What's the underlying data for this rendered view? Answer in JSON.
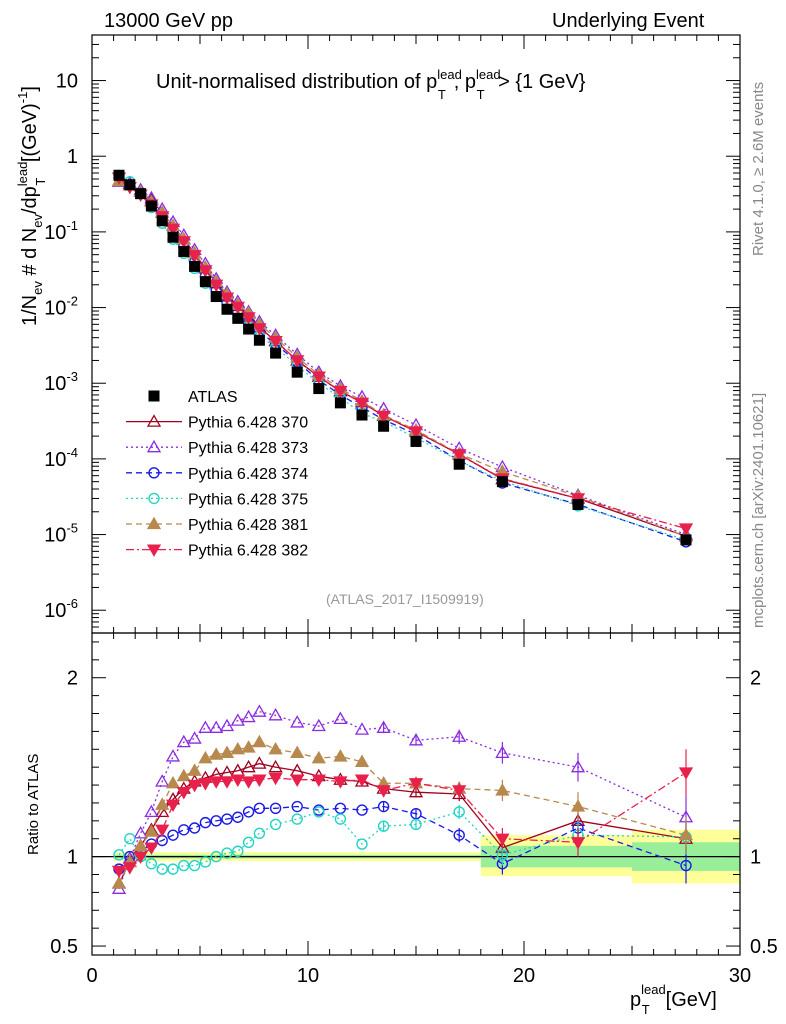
{
  "header": {
    "left": "13000 GeV pp",
    "right": "Underlying Event"
  },
  "side_labels": {
    "rivet": "Rivet 4.1.0, ≥ 2.6M events",
    "mcplots": "mcplots.cern.ch [arXiv:2401.10621]"
  },
  "chart_data": [
    {
      "type": "scatter",
      "panel": "main",
      "title": "Unit-normalised distribution of pT^lead, pT^lead > {1 GeV}",
      "title_main": "Unit-normalised distribution of p",
      "title_mid": ", p",
      "title_end": " > {1 GeV}",
      "sup": "lead",
      "sub": "T",
      "ylabel": "1/Nev # d Nev/dpT^lead [(GeV)^-1]",
      "ylabel_parts": {
        "a": "1/N",
        "ev": "ev",
        "b": "# d N",
        "c": "/dp",
        "unit": "[(GeV)",
        "neg1": "-1",
        "close": "]"
      },
      "yscale": "log",
      "ylim": [
        5e-07,
        40
      ],
      "xlim": [
        0,
        30
      ],
      "ytick_labels": [
        {
          "b": "10",
          "e": "-6"
        },
        {
          "b": "10",
          "e": "-5"
        },
        {
          "b": "10",
          "e": "-4"
        },
        {
          "b": "10",
          "e": "-3"
        },
        {
          "b": "10",
          "e": "-2"
        },
        {
          "b": "10",
          "e": "-1"
        },
        {
          "b": "1",
          "e": ""
        },
        {
          "b": "10",
          "e": ""
        }
      ],
      "watermark": "(ATLAS_2017_I1509919)",
      "legend_position": "middle-left",
      "x": [
        1.25,
        1.75,
        2.25,
        2.75,
        3.25,
        3.75,
        4.25,
        4.75,
        5.25,
        5.75,
        6.25,
        6.75,
        7.25,
        7.75,
        8.5,
        9.5,
        10.5,
        11.5,
        12.5,
        13.5,
        15,
        17,
        19,
        22.5,
        27.5
      ],
      "series": [
        {
          "name": "ATLAS",
          "style": "data",
          "values": [
            0.56,
            0.42,
            0.32,
            0.22,
            0.14,
            0.085,
            0.055,
            0.035,
            0.022,
            0.014,
            0.0095,
            0.0072,
            0.0052,
            0.0037,
            0.0025,
            0.0014,
            0.00085,
            0.00055,
            0.00038,
            0.00027,
            0.00017,
            8.5e-05,
            5e-05,
            2.5e-05,
            8.5e-06
          ]
        },
        {
          "name": "Pythia 6.428 370",
          "style": "s370",
          "values": [
            0.47,
            0.43,
            0.34,
            0.26,
            0.18,
            0.12,
            0.08,
            0.052,
            0.033,
            0.021,
            0.014,
            0.0105,
            0.0076,
            0.0055,
            0.0036,
            0.002,
            0.00122,
            0.00078,
            0.00056,
            0.00037,
            0.00023,
            0.000115,
            5.4e-05,
            3e-05,
            9.5e-06
          ]
        },
        {
          "name": "Pythia 6.428 373",
          "style": "s373",
          "values": [
            0.46,
            0.44,
            0.36,
            0.28,
            0.2,
            0.135,
            0.09,
            0.058,
            0.038,
            0.024,
            0.016,
            0.012,
            0.0088,
            0.0065,
            0.0043,
            0.0024,
            0.0014,
            0.00092,
            0.00066,
            0.00046,
            0.00028,
            0.000138,
            7.8e-05,
            3.3e-05,
            1e-05
          ]
        },
        {
          "name": "Pythia 6.428 374",
          "style": "s374",
          "values": [
            0.52,
            0.42,
            0.33,
            0.24,
            0.16,
            0.1,
            0.064,
            0.04,
            0.026,
            0.017,
            0.0115,
            0.0088,
            0.0065,
            0.0048,
            0.0033,
            0.0019,
            0.0011,
            0.0007,
            0.00048,
            0.00033,
            0.00021,
            9.5e-05,
            4.8e-05,
            2.5e-05,
            8e-06
          ]
        },
        {
          "name": "Pythia 6.428 375",
          "style": "s375",
          "values": [
            0.56,
            0.46,
            0.32,
            0.21,
            0.13,
            0.08,
            0.052,
            0.033,
            0.021,
            0.014,
            0.0096,
            0.0073,
            0.0056,
            0.0042,
            0.003,
            0.0017,
            0.001,
            0.00064,
            0.0004,
            0.00031,
            0.00019,
            9.4e-05,
            5.1e-05,
            2.4e-05,
            8.5e-06
          ]
        },
        {
          "name": "Pythia 6.428 381",
          "style": "s381",
          "values": [
            0.47,
            0.41,
            0.34,
            0.25,
            0.18,
            0.12,
            0.08,
            0.052,
            0.034,
            0.022,
            0.015,
            0.011,
            0.0084,
            0.006,
            0.004,
            0.0022,
            0.0013,
            0.00085,
            0.00058,
            0.00038,
            0.00024,
            0.000117,
            6.8e-05,
            3.2e-05,
            9.5e-06
          ]
        },
        {
          "name": "Pythia 6.428 382",
          "style": "s382",
          "values": [
            0.52,
            0.39,
            0.31,
            0.23,
            0.16,
            0.11,
            0.075,
            0.049,
            0.031,
            0.02,
            0.0135,
            0.0102,
            0.0074,
            0.0053,
            0.0036,
            0.002,
            0.00122,
            0.00079,
            0.00055,
            0.00037,
            0.00023,
            0.000115,
            5.5e-05,
            3e-05,
            1.2e-05
          ]
        }
      ]
    },
    {
      "type": "scatter",
      "panel": "ratio",
      "ylabel": "Ratio to ATLAS",
      "xlabel": "pT^lead [GeV]",
      "xlabel_parts": {
        "p": "p",
        "sub": "T",
        "sup": "lead",
        "unit": "[GeV]"
      },
      "ylim": [
        0.45,
        2.25
      ],
      "xlim": [
        0,
        30
      ],
      "xtick_labels": [
        "0",
        "10",
        "20",
        "30"
      ],
      "ytick_labels": [
        "0.5",
        "1",
        "2"
      ],
      "bands": [
        {
          "x0": 1.0,
          "x1": 18.0,
          "lo_yellow": 0.975,
          "hi_yellow": 1.025,
          "lo_green": 0.99,
          "hi_green": 1.01
        },
        {
          "x0": 18.0,
          "x1": 25.0,
          "lo_yellow": 0.89,
          "hi_yellow": 1.12,
          "lo_green": 0.94,
          "hi_green": 1.06
        },
        {
          "x0": 25.0,
          "x1": 30.0,
          "lo_yellow": 0.85,
          "hi_yellow": 1.15,
          "lo_green": 0.92,
          "hi_green": 1.08
        }
      ],
      "x": [
        1.25,
        1.75,
        2.25,
        2.75,
        3.25,
        3.75,
        4.25,
        4.75,
        5.25,
        5.75,
        6.25,
        6.75,
        7.25,
        7.75,
        8.5,
        9.5,
        10.5,
        11.5,
        12.5,
        13.5,
        15,
        17,
        19,
        22.5,
        27.5
      ],
      "series": [
        {
          "name": "Pythia 6.428 370",
          "style": "s370",
          "values": [
            0.85,
            0.97,
            1.06,
            1.15,
            1.25,
            1.32,
            1.38,
            1.42,
            1.44,
            1.46,
            1.47,
            1.48,
            1.5,
            1.52,
            1.5,
            1.48,
            1.45,
            1.43,
            1.42,
            1.38,
            1.36,
            1.35,
            1.05,
            1.2,
            1.1
          ],
          "errors": [
            0,
            0,
            0,
            0,
            0,
            0,
            0,
            0,
            0,
            0,
            0,
            0,
            0,
            0,
            0,
            0,
            0,
            0,
            0,
            0.03,
            0.03,
            0.04,
            0.06,
            0.08,
            0.1
          ]
        },
        {
          "name": "Pythia 6.428 373",
          "style": "s373",
          "values": [
            0.82,
            0.99,
            1.13,
            1.25,
            1.42,
            1.56,
            1.64,
            1.66,
            1.72,
            1.72,
            1.73,
            1.76,
            1.78,
            1.81,
            1.79,
            1.75,
            1.73,
            1.77,
            1.71,
            1.72,
            1.65,
            1.67,
            1.58,
            1.5,
            1.22
          ],
          "errors": [
            0,
            0,
            0,
            0,
            0,
            0,
            0,
            0,
            0,
            0,
            0,
            0,
            0,
            0,
            0,
            0,
            0,
            0,
            0,
            0.03,
            0.03,
            0.04,
            0.06,
            0.08,
            0.12
          ]
        },
        {
          "name": "Pythia 6.428 374",
          "style": "s374",
          "values": [
            0.93,
            1.0,
            1.03,
            1.07,
            1.09,
            1.12,
            1.15,
            1.16,
            1.19,
            1.2,
            1.21,
            1.22,
            1.25,
            1.27,
            1.27,
            1.28,
            1.26,
            1.27,
            1.26,
            1.28,
            1.24,
            1.12,
            0.96,
            1.16,
            0.95
          ],
          "errors": [
            0,
            0,
            0,
            0,
            0,
            0,
            0,
            0,
            0,
            0,
            0,
            0,
            0,
            0,
            0,
            0,
            0,
            0,
            0,
            0.03,
            0.03,
            0.04,
            0.06,
            0.08,
            0.1
          ]
        },
        {
          "name": "Pythia 6.428 375",
          "style": "s375",
          "values": [
            1.01,
            1.1,
            1.0,
            0.96,
            0.93,
            0.93,
            0.95,
            0.95,
            0.97,
            1.0,
            1.02,
            1.03,
            1.08,
            1.13,
            1.18,
            1.21,
            1.25,
            1.21,
            1.07,
            1.17,
            1.18,
            1.25,
            1.01,
            1.12,
            1.11
          ],
          "errors": [
            0,
            0,
            0,
            0,
            0,
            0,
            0,
            0,
            0,
            0,
            0,
            0,
            0,
            0,
            0,
            0,
            0,
            0,
            0,
            0.03,
            0.03,
            0.04,
            0.06,
            0.08,
            0.1
          ]
        },
        {
          "name": "Pythia 6.428 381",
          "style": "s381",
          "values": [
            0.85,
            0.97,
            1.06,
            1.14,
            1.29,
            1.41,
            1.45,
            1.48,
            1.55,
            1.57,
            1.58,
            1.6,
            1.61,
            1.64,
            1.6,
            1.58,
            1.55,
            1.56,
            1.53,
            1.41,
            1.41,
            1.38,
            1.37,
            1.28,
            1.12
          ],
          "errors": [
            0,
            0,
            0,
            0,
            0,
            0,
            0,
            0,
            0,
            0,
            0,
            0,
            0,
            0,
            0,
            0,
            0,
            0,
            0,
            0.03,
            0.03,
            0.04,
            0.06,
            0.08,
            0.1
          ]
        },
        {
          "name": "Pythia 6.428 382",
          "style": "s382",
          "values": [
            0.92,
            0.94,
            1.0,
            1.05,
            1.15,
            1.29,
            1.36,
            1.4,
            1.41,
            1.42,
            1.42,
            1.43,
            1.42,
            1.43,
            1.44,
            1.43,
            1.43,
            1.42,
            1.43,
            1.37,
            1.41,
            1.37,
            1.1,
            1.08,
            1.47
          ],
          "errors": [
            0,
            0,
            0,
            0,
            0,
            0,
            0,
            0,
            0,
            0,
            0,
            0,
            0,
            0,
            0,
            0,
            0,
            0,
            0,
            0.03,
            0.03,
            0.04,
            0.06,
            0.08,
            0.13
          ]
        }
      ]
    }
  ],
  "colors": {
    "ATLAS": "#000000",
    "s370": "#a0001e",
    "s373": "#8a2be2",
    "s374": "#1a1ae6",
    "s375": "#22d4c4",
    "s381": "#b8894e",
    "s382": "#e8204c",
    "band_yellow": "#ffff99",
    "band_green": "#99ee99",
    "text_gray": "#888888"
  }
}
